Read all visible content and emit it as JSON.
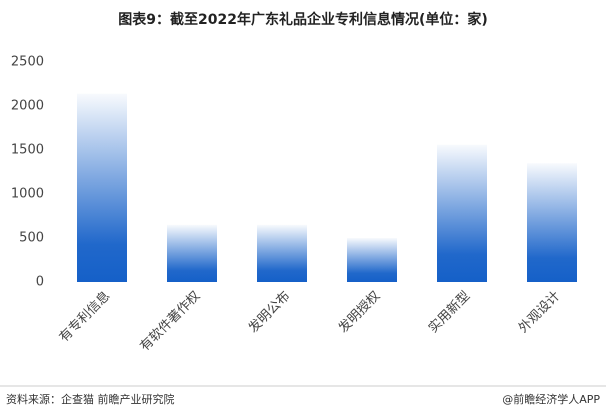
{
  "chart_data": {
    "type": "bar",
    "title": "图表9：截至2022年广东礼品企业专利信息情况(单位：家)",
    "categories": [
      "有专利信息",
      "有软件著作权",
      "发明公布",
      "发明授权",
      "实用新型",
      "外观设计"
    ],
    "values": [
      2140,
      650,
      650,
      500,
      1560,
      1350
    ],
    "color": "#1560c8",
    "ylim": [
      0,
      2500
    ],
    "yticks": [
      0,
      500,
      1000,
      1500,
      2000,
      2500
    ],
    "grid": false,
    "source": "资料来源：企查猫 前瞻产业研究院",
    "credit": "@前瞻经济学人APP"
  }
}
